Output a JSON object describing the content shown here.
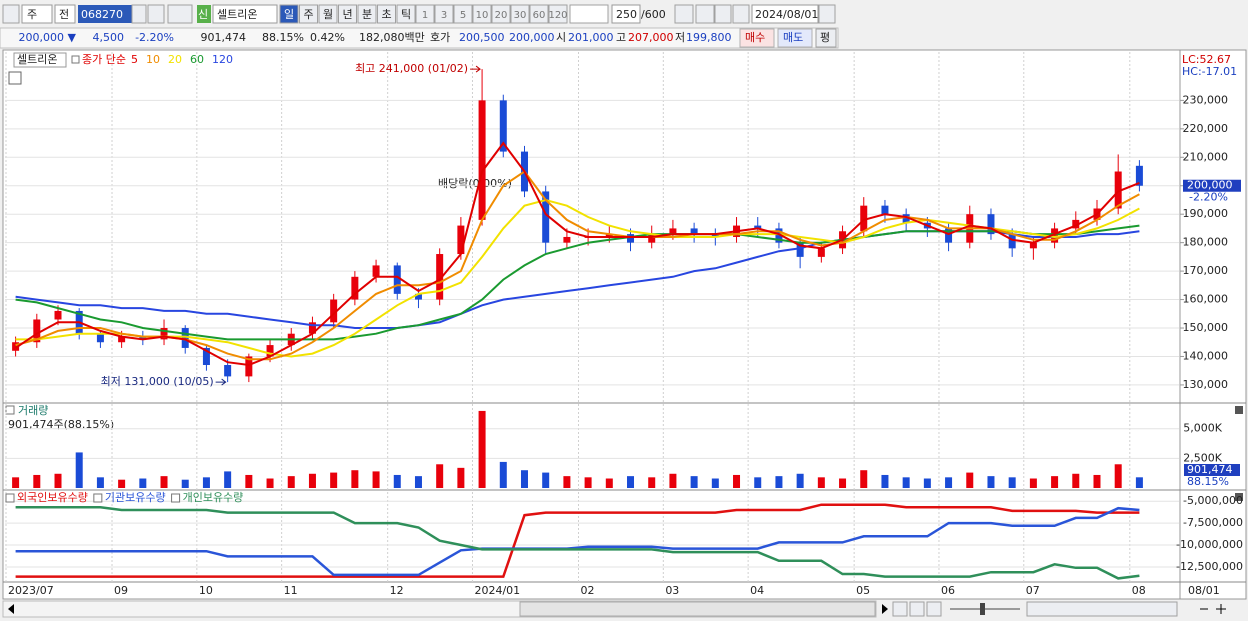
{
  "toolbar": {
    "period": "주",
    "range": "전",
    "code": "068270",
    "new": "신",
    "name": "셀트리온",
    "intervals": [
      "일",
      "주",
      "월",
      "년",
      "분",
      "초",
      "틱"
    ],
    "minutes": [
      "1",
      "3",
      "5",
      "10",
      "20",
      "30",
      "60",
      "120"
    ],
    "count": "250",
    "max": "/600",
    "date": "2024/08/01"
  },
  "quote": {
    "price": "200,000 ▼",
    "change": "4,500",
    "change_pct": "-2.20%",
    "volume": "901,474",
    "volume_ratio": "88.15%",
    "turnover": "0.42%",
    "amount": "182,080백만",
    "ask_label": "호가",
    "ask": "200,500",
    "bid": "200,000",
    "open_label": "시",
    "open": "201,000",
    "high_label": "고",
    "high": "207,000",
    "low_label": "저",
    "low": "199,800",
    "buy": "매수",
    "sell": "매도",
    "avg": "평"
  },
  "x_cursor_label": "08/01",
  "chart_data": [
    {
      "type": "candlestick",
      "name": "셀트리온",
      "legend_title": "종가 단순",
      "up_color": "#e8000b",
      "down_color": "#1a4bd6",
      "grid": true,
      "open": [
        142000,
        145000,
        153000,
        156000,
        148000,
        145000,
        147000,
        146000,
        150000,
        143000,
        137000,
        133000,
        140000,
        144000,
        148000,
        152000,
        160000,
        168000,
        172000,
        162000,
        160000,
        176000,
        188000,
        230000,
        212000,
        198000,
        180000,
        182000,
        182000,
        183000,
        180000,
        183000,
        185000,
        183000,
        182000,
        186000,
        185000,
        180000,
        175000,
        178000,
        184000,
        193000,
        190000,
        187000,
        185000,
        180000,
        190000,
        183000,
        178000,
        180000,
        185000,
        188000,
        192000,
        207000
      ],
      "high": [
        147000,
        155000,
        158000,
        157000,
        149000,
        149000,
        149000,
        153000,
        151000,
        144000,
        139000,
        141000,
        146000,
        150000,
        154000,
        162000,
        170000,
        174000,
        173000,
        164000,
        178000,
        189000,
        241000,
        232000,
        214000,
        200000,
        185000,
        185000,
        186000,
        185000,
        186000,
        188000,
        187000,
        185000,
        189000,
        189000,
        187000,
        182000,
        180000,
        186000,
        196000,
        195000,
        192000,
        189000,
        187000,
        193000,
        192000,
        185000,
        182000,
        187000,
        191000,
        195000,
        211000,
        209000
      ],
      "low": [
        140000,
        143000,
        151000,
        146000,
        143000,
        143000,
        144000,
        144000,
        141000,
        135000,
        131000,
        131000,
        138000,
        142000,
        146000,
        150000,
        158000,
        166000,
        160000,
        157000,
        158000,
        174000,
        186000,
        210000,
        196000,
        176000,
        178000,
        179000,
        180000,
        177000,
        178000,
        181000,
        180000,
        179000,
        180000,
        182000,
        178000,
        171000,
        173000,
        176000,
        182000,
        187000,
        184000,
        182000,
        177000,
        178000,
        181000,
        175000,
        174000,
        178000,
        183000,
        186000,
        190000,
        198000
      ],
      "close": [
        145000,
        153000,
        156000,
        148000,
        145000,
        147000,
        146000,
        150000,
        143000,
        137000,
        133000,
        140000,
        144000,
        148000,
        152000,
        160000,
        168000,
        172000,
        162000,
        160000,
        176000,
        186000,
        230000,
        212000,
        198000,
        180000,
        182000,
        182000,
        183000,
        180000,
        183000,
        185000,
        183000,
        182000,
        186000,
        185000,
        180000,
        175000,
        178000,
        184000,
        193000,
        190000,
        187000,
        185000,
        180000,
        190000,
        183000,
        178000,
        180000,
        185000,
        188000,
        192000,
        205000,
        200000
      ],
      "series": [
        {
          "name": "5",
          "color": "#e00000",
          "values": [
            143000,
            148000,
            152000,
            152000,
            149000,
            147000,
            146000,
            147000,
            146000,
            142000,
            138000,
            137000,
            140000,
            144000,
            148000,
            155000,
            162000,
            168000,
            168000,
            163000,
            167000,
            176000,
            205000,
            215000,
            205000,
            190000,
            184000,
            182000,
            182000,
            182000,
            182000,
            183000,
            183000,
            183000,
            184000,
            185000,
            183000,
            179000,
            178000,
            181000,
            188000,
            190000,
            189000,
            186000,
            183000,
            186000,
            185000,
            181000,
            180000,
            183000,
            186000,
            190000,
            198000,
            201000
          ]
        },
        {
          "name": "10",
          "color": "#f08c00",
          "values": [
            144000,
            146000,
            149000,
            150000,
            150000,
            148000,
            147000,
            147000,
            146000,
            144000,
            141000,
            139000,
            139000,
            141000,
            145000,
            150000,
            156000,
            162000,
            165000,
            165000,
            166000,
            170000,
            188000,
            200000,
            205000,
            195000,
            188000,
            184000,
            183000,
            182000,
            182000,
            182000,
            183000,
            183000,
            183000,
            184000,
            184000,
            181000,
            179000,
            180000,
            184000,
            188000,
            189000,
            188000,
            185000,
            185000,
            185000,
            183000,
            181000,
            181000,
            184000,
            188000,
            193000,
            197000
          ]
        },
        {
          "name": "20",
          "color": "#f2e200",
          "values": [
            146000,
            146000,
            147000,
            148000,
            148000,
            148000,
            147000,
            147000,
            147000,
            146000,
            145000,
            143000,
            141000,
            140000,
            141000,
            144000,
            148000,
            153000,
            158000,
            162000,
            163000,
            166000,
            175000,
            185000,
            193000,
            195000,
            193000,
            189000,
            186000,
            184000,
            183000,
            182000,
            182000,
            182000,
            183000,
            183000,
            183000,
            182000,
            181000,
            180000,
            182000,
            185000,
            187000,
            188000,
            187000,
            186000,
            185000,
            184000,
            183000,
            182000,
            183000,
            185000,
            188000,
            192000
          ]
        },
        {
          "name": "60",
          "color": "#1a9a30",
          "values": [
            160000,
            159000,
            157000,
            155000,
            153000,
            152000,
            150000,
            149000,
            148000,
            147000,
            146000,
            146000,
            146000,
            146000,
            146000,
            146000,
            147000,
            148000,
            150000,
            151000,
            153000,
            155000,
            160000,
            167000,
            172000,
            176000,
            178000,
            180000,
            181000,
            182000,
            183000,
            183000,
            183000,
            183000,
            183000,
            182000,
            181000,
            180000,
            180000,
            181000,
            182000,
            183000,
            184000,
            184000,
            184000,
            184000,
            184000,
            184000,
            183000,
            183000,
            183000,
            184000,
            185000,
            186000
          ]
        },
        {
          "name": "120",
          "color": "#2846e0",
          "values": [
            161000,
            160000,
            159000,
            158000,
            158000,
            157000,
            157000,
            156000,
            156000,
            155000,
            155000,
            154000,
            153000,
            152000,
            151000,
            151000,
            150000,
            150000,
            150000,
            151000,
            152000,
            155000,
            158000,
            160000,
            161000,
            162000,
            163000,
            164000,
            165000,
            166000,
            167000,
            168000,
            170000,
            171000,
            173000,
            175000,
            177000,
            178000,
            180000,
            181000,
            182000,
            183000,
            184000,
            184000,
            184000,
            184000,
            184000,
            183000,
            182000,
            182000,
            182000,
            183000,
            183000,
            184000
          ]
        }
      ],
      "ylim": [
        124000,
        247000
      ],
      "yticks": [
        {
          "value": 130000,
          "label": "130,000"
        },
        {
          "value": 140000,
          "label": "140,000"
        },
        {
          "value": 150000,
          "label": "150,000"
        },
        {
          "value": 160000,
          "label": "160,000"
        },
        {
          "value": 170000,
          "label": "170,000"
        },
        {
          "value": 180000,
          "label": "180,000"
        },
        {
          "value": 190000,
          "label": "190,000"
        },
        {
          "value": 200000,
          "label": "200,000"
        },
        {
          "value": 210000,
          "label": "210,000"
        },
        {
          "value": 220000,
          "label": "220,000"
        },
        {
          "value": 230000,
          "label": "230,000"
        }
      ],
      "annotations": {
        "high": "최고 241,000 (01/02)",
        "low": "최저 131,000 (10/05)",
        "ex_dividend": "배당락(0.00%)"
      },
      "last_label": "200,000",
      "last_change": "-2.20%",
      "lc": "LC:52.67",
      "hc": "HC:-17.01"
    },
    {
      "type": "bar",
      "title": "거래량",
      "subtitle": "901,474주(88.15%)",
      "last_label": "901,474",
      "last_ratio": "88.15%",
      "grid": true,
      "values": [
        900000,
        1100000,
        1200000,
        3000000,
        900000,
        700000,
        800000,
        1000000,
        700000,
        900000,
        1400000,
        1100000,
        800000,
        1000000,
        1200000,
        1300000,
        1500000,
        1400000,
        1100000,
        1000000,
        2000000,
        1700000,
        6500000,
        2200000,
        1500000,
        1300000,
        1000000,
        900000,
        800000,
        1000000,
        900000,
        1200000,
        1000000,
        800000,
        1100000,
        900000,
        1000000,
        1200000,
        900000,
        800000,
        1500000,
        1100000,
        900000,
        800000,
        900000,
        1300000,
        1000000,
        900000,
        800000,
        1000000,
        1200000,
        1100000,
        2000000,
        901474
      ],
      "ylim": [
        0,
        7000000
      ],
      "yticks": [
        {
          "value": 2500000,
          "label": "2,500K"
        },
        {
          "value": 5000000,
          "label": "5,000K"
        }
      ]
    },
    {
      "type": "line",
      "grid": true,
      "categories": [
        "2023/07",
        null,
        null,
        null,
        null,
        "09",
        null,
        null,
        null,
        "10",
        null,
        null,
        null,
        "11",
        null,
        null,
        null,
        null,
        "12",
        null,
        null,
        null,
        "2024/01",
        null,
        null,
        null,
        null,
        "02",
        null,
        null,
        null,
        "03",
        null,
        null,
        null,
        "04",
        null,
        null,
        null,
        null,
        "05",
        null,
        null,
        null,
        "06",
        null,
        null,
        null,
        "07",
        null,
        null,
        null,
        null,
        "08"
      ],
      "series": [
        {
          "name": "외국인보유수량",
          "color": "#e01010",
          "values": [
            -13600000,
            -13600000,
            -13600000,
            -13600000,
            -13600000,
            -13600000,
            -13600000,
            -13600000,
            -13600000,
            -13600000,
            -13600000,
            -13600000,
            -13600000,
            -13600000,
            -13600000,
            -13600000,
            -13600000,
            -13600000,
            -13600000,
            -13600000,
            -13600000,
            -13600000,
            -13600000,
            -13600000,
            -6600000,
            -6300000,
            -6300000,
            -6300000,
            -6300000,
            -6300000,
            -6300000,
            -6300000,
            -6300000,
            -6300000,
            -6000000,
            -6000000,
            -6000000,
            -6000000,
            -5400000,
            -5400000,
            -5400000,
            -5400000,
            -5700000,
            -5700000,
            -5700000,
            -5700000,
            -5700000,
            -6100000,
            -6100000,
            -6100000,
            -6100000,
            -6300000,
            -6300000,
            -6300000
          ]
        },
        {
          "name": "기관보유수량",
          "color": "#2a55d8",
          "values": [
            -10700000,
            -10700000,
            -10700000,
            -10700000,
            -10700000,
            -10700000,
            -10700000,
            -10700000,
            -10700000,
            -10700000,
            -11300000,
            -11300000,
            -11300000,
            -11300000,
            -11300000,
            -13400000,
            -13400000,
            -13400000,
            -13400000,
            -13400000,
            -12000000,
            -10600000,
            -10400000,
            -10400000,
            -10400000,
            -10400000,
            -10400000,
            -10200000,
            -10200000,
            -10200000,
            -10200000,
            -10400000,
            -10400000,
            -10400000,
            -10400000,
            -10400000,
            -9700000,
            -9700000,
            -9700000,
            -9700000,
            -9000000,
            -9000000,
            -9000000,
            -9000000,
            -7500000,
            -7500000,
            -7500000,
            -7800000,
            -7800000,
            -7800000,
            -6900000,
            -6900000,
            -5800000,
            -6000000
          ]
        },
        {
          "name": "개인보유수량",
          "color": "#2f8f5a",
          "values": [
            -5700000,
            -5700000,
            -5700000,
            -5700000,
            -5700000,
            -6000000,
            -6000000,
            -6000000,
            -6000000,
            -6000000,
            -6300000,
            -6300000,
            -6300000,
            -6300000,
            -6300000,
            -6300000,
            -7500000,
            -7500000,
            -7500000,
            -8000000,
            -9500000,
            -10000000,
            -10500000,
            -10500000,
            -10500000,
            -10500000,
            -10500000,
            -10500000,
            -10500000,
            -10500000,
            -10500000,
            -10800000,
            -10800000,
            -10800000,
            -10800000,
            -10800000,
            -11800000,
            -11800000,
            -11800000,
            -13300000,
            -13300000,
            -13600000,
            -13600000,
            -13600000,
            -13600000,
            -13600000,
            -13100000,
            -13100000,
            -13100000,
            -12200000,
            -12600000,
            -12600000,
            -13800000,
            -13500000
          ]
        }
      ],
      "ylim": [
        -14100000,
        -3950000
      ],
      "yticks": [
        {
          "value": -12500000,
          "label": "-12,500,000"
        },
        {
          "value": -10000000,
          "label": "-10,000,000"
        },
        {
          "value": -7500000,
          "label": "-7,500,000"
        },
        {
          "value": -5000000,
          "label": "-5,000,000"
        }
      ]
    }
  ]
}
